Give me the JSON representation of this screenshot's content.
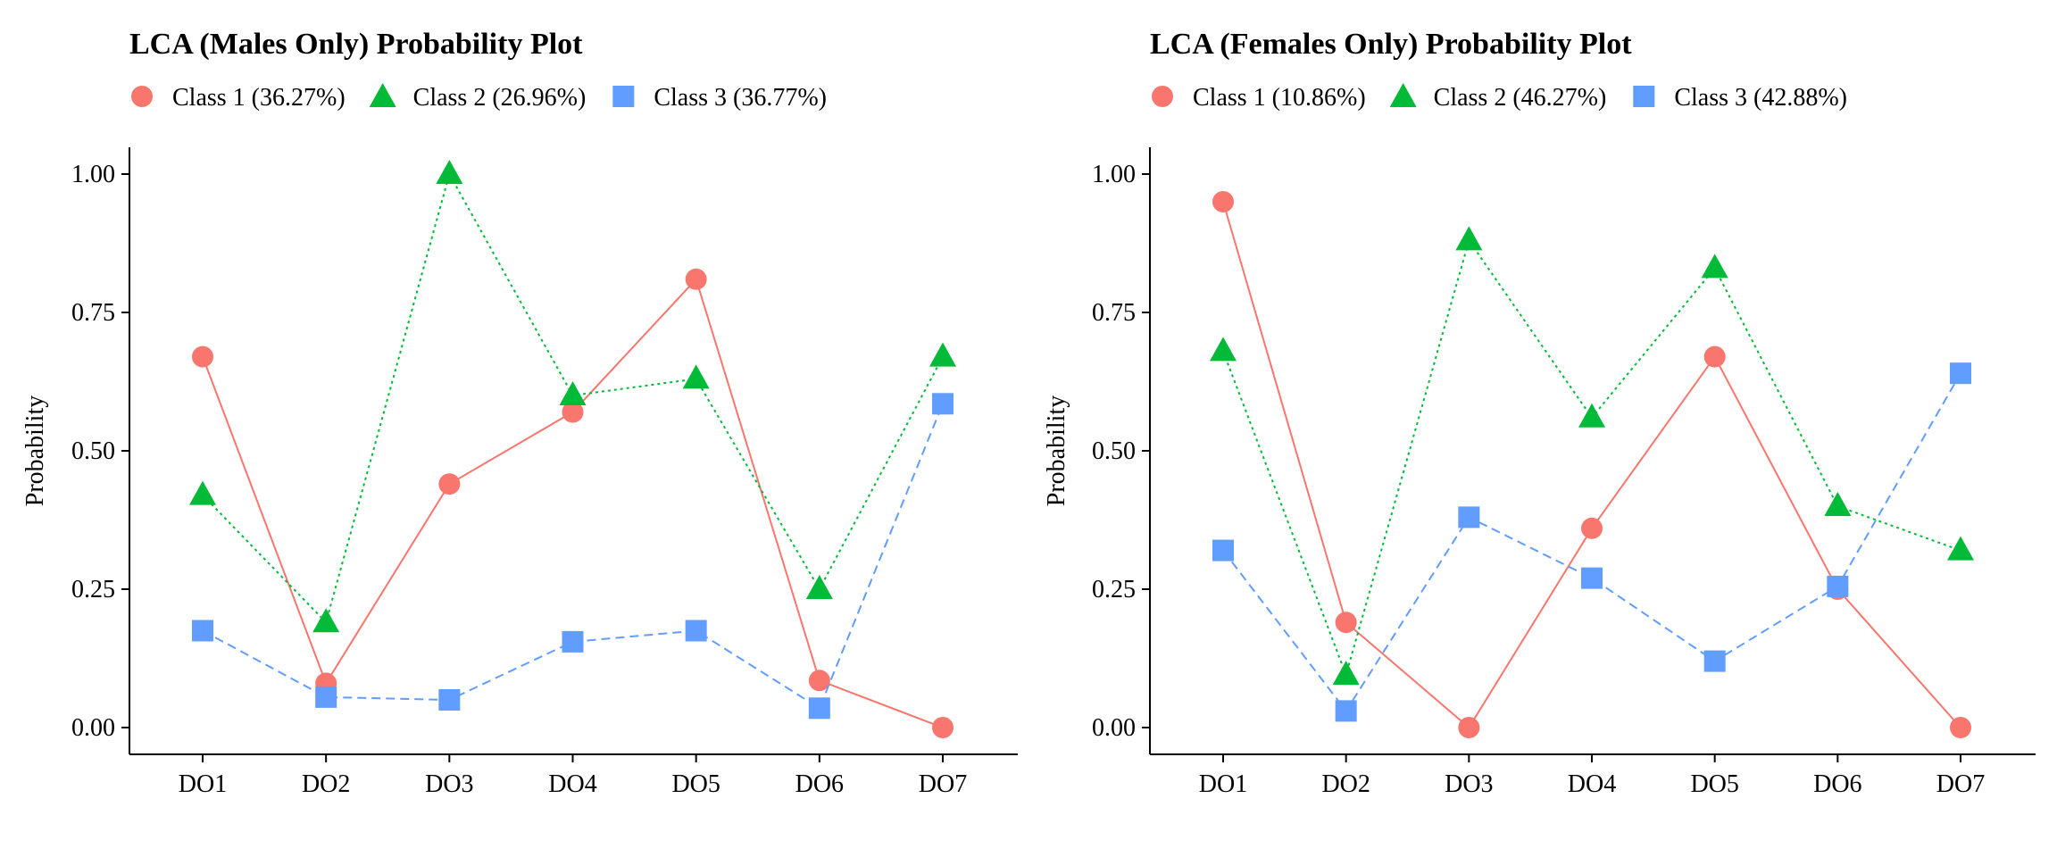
{
  "chart_data": [
    {
      "type": "line",
      "title": "LCA (Males Only) Probability Plot",
      "xlabel": "",
      "ylabel": "Probability",
      "ylim": [
        0,
        1
      ],
      "yticks": [
        "0.00",
        "0.25",
        "0.50",
        "0.75",
        "1.00"
      ],
      "ytick_values": [
        0,
        0.25,
        0.5,
        0.75,
        1
      ],
      "categories": [
        "DO1",
        "DO2",
        "DO3",
        "DO4",
        "DO5",
        "DO6",
        "DO7"
      ],
      "legend_position": "top-left",
      "grid": false,
      "series": [
        {
          "name": "Class 1 (36.27%)",
          "marker": "circle",
          "line": "solid",
          "color": "#F8766D",
          "values": [
            0.67,
            0.08,
            0.44,
            0.57,
            0.81,
            0.085,
            0.0
          ]
        },
        {
          "name": "Class 2 (26.96%)",
          "marker": "triangle",
          "line": "dotted",
          "color": "#00BA38",
          "values": [
            0.42,
            0.19,
            1.0,
            0.6,
            0.63,
            0.25,
            0.67
          ]
        },
        {
          "name": "Class 3 (36.77%)",
          "marker": "square",
          "line": "dashed",
          "color": "#619CFF",
          "values": [
            0.175,
            0.055,
            0.05,
            0.155,
            0.175,
            0.035,
            0.585
          ]
        }
      ]
    },
    {
      "type": "line",
      "title": "LCA (Females Only) Probability Plot",
      "xlabel": "",
      "ylabel": "Probability",
      "ylim": [
        0,
        1
      ],
      "yticks": [
        "0.00",
        "0.25",
        "0.50",
        "0.75",
        "1.00"
      ],
      "ytick_values": [
        0,
        0.25,
        0.5,
        0.75,
        1
      ],
      "categories": [
        "DO1",
        "DO2",
        "DO3",
        "DO4",
        "DO5",
        "DO6",
        "DO7"
      ],
      "legend_position": "top-left",
      "grid": false,
      "series": [
        {
          "name": "Class 1 (10.86%)",
          "marker": "circle",
          "line": "solid",
          "color": "#F8766D",
          "values": [
            0.95,
            0.19,
            0.0,
            0.36,
            0.67,
            0.25,
            0.0
          ]
        },
        {
          "name": "Class 2 (46.27%)",
          "marker": "triangle",
          "line": "dotted",
          "color": "#00BA38",
          "values": [
            0.68,
            0.095,
            0.88,
            0.56,
            0.83,
            0.4,
            0.32
          ]
        },
        {
          "name": "Class 3 (42.88%)",
          "marker": "square",
          "line": "dashed",
          "color": "#619CFF",
          "values": [
            0.32,
            0.03,
            0.38,
            0.27,
            0.12,
            0.255,
            0.64
          ]
        }
      ]
    }
  ]
}
